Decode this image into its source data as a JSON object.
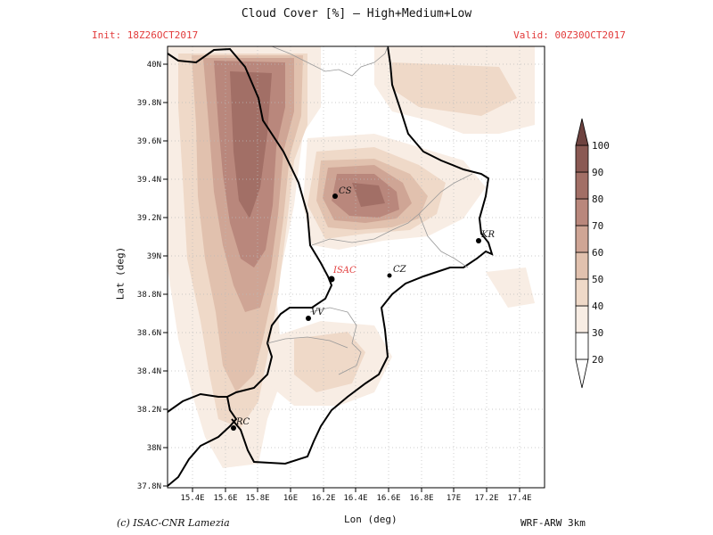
{
  "header": {
    "title": "Cloud Cover [%] — High+Medium+Low",
    "init": "Init: 18Z26OCT2017",
    "valid": "Valid: 00Z30OCT2017"
  },
  "footer": {
    "credit": "(c) ISAC-CNR Lamezia",
    "model": "WRF-ARW 3km"
  },
  "axes": {
    "xlabel": "Lon (deg)",
    "ylabel": "Lat (deg)",
    "x_ticks": [
      "15.4E",
      "15.6E",
      "15.8E",
      "16E",
      "16.2E",
      "16.4E",
      "16.6E",
      "16.8E",
      "17E",
      "17.2E",
      "17.4E"
    ],
    "y_ticks": [
      "40N",
      "39.8N",
      "39.6N",
      "39.4N",
      "39.2N",
      "39N",
      "38.8N",
      "38.6N",
      "38.4N",
      "38.2N",
      "38N",
      "37.8N"
    ]
  },
  "colorbar": {
    "labels": [
      "20",
      "30",
      "40",
      "50",
      "60",
      "70",
      "80",
      "90",
      "100"
    ],
    "colors": [
      "#ffffff",
      "#f8ede4",
      "#efd9c8",
      "#e1c1ae",
      "#cfa595",
      "#b9877c",
      "#a26f66",
      "#8a5953",
      "#6e4340"
    ]
  },
  "cities": [
    {
      "label": "CS",
      "color": "#111111"
    },
    {
      "label": "KR",
      "color": "#111111"
    },
    {
      "label": "ISAC",
      "color": "#e23b3b"
    },
    {
      "label": "CZ",
      "color": "#111111"
    },
    {
      "label": "VV",
      "color": "#111111"
    },
    {
      "label": "RC",
      "color": "#111111"
    }
  ]
}
